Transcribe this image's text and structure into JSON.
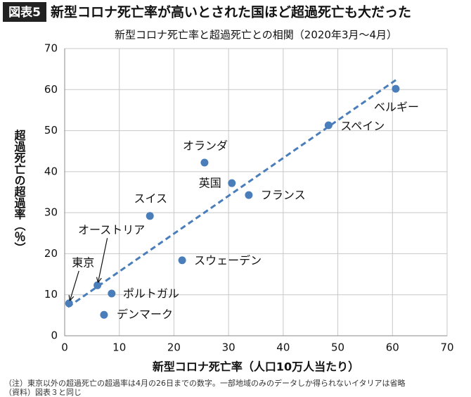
{
  "chart_data": {
    "type": "scatter",
    "badge": "図表5",
    "title": "新型コロナ死亡率が高いとされた国ほど超過死亡も大だった",
    "subtitle": "新型コロナ死亡率と超過死亡との相関（2020年3月～4月）",
    "x_label": "新型コロナ死亡率（人口10万人当たり）",
    "y_label": "超過死亡の超過率（％）",
    "color": "#4a7ebb",
    "grid": true,
    "xlim": [
      0,
      70
    ],
    "xticks": [
      0,
      10,
      20,
      30,
      40,
      50,
      60,
      70
    ],
    "ylim": [
      0,
      70
    ],
    "yticks": [
      0,
      10,
      20,
      30,
      40,
      50,
      60,
      70
    ],
    "point_labels": [
      "東京",
      "オーストリア",
      "ポルトガル",
      "デンマーク",
      "スイス",
      "スウェーデン",
      "オランダ",
      "英国",
      "フランス",
      "スペイン",
      "ベルギー"
    ],
    "x": [
      0.8,
      6.0,
      8.6,
      7.2,
      15.6,
      21.5,
      25.6,
      30.6,
      33.7,
      48.3,
      60.6
    ],
    "y": [
      7.9,
      12.3,
      10.3,
      5.1,
      29.2,
      18.4,
      42.2,
      37.2,
      34.3,
      51.3,
      60.2
    ],
    "trendline": {
      "x": [
        0.6,
        60.7
      ],
      "y": [
        7.0,
        62.4
      ]
    },
    "notes": [
      "（注）東京以外の超過死亡の超過率は4月の26日までの数字。一部地域のみのデータしか得られないイタリアは省略",
      "（資料）図表３と同じ"
    ]
  }
}
